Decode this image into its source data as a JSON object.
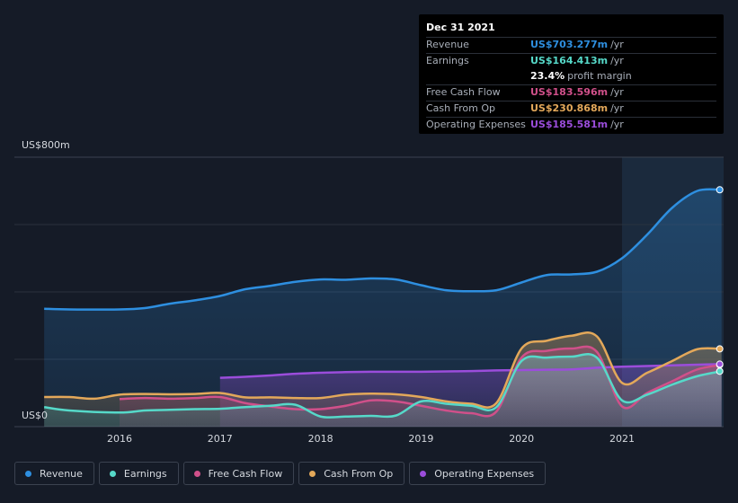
{
  "chart_data": {
    "type": "area",
    "y_axis": {
      "top_label": "US$800m",
      "bottom_label": "US$0",
      "ylim": [
        0,
        800
      ],
      "grid": true
    },
    "x_ticks": [
      "2016",
      "2017",
      "2018",
      "2019",
      "2020",
      "2021"
    ],
    "xlim": [
      2015.25,
      2021.99
    ],
    "highlight_start": 2021.0,
    "series": [
      {
        "name": "Revenue",
        "color": "#2e8fe0",
        "points": [
          [
            2015.25,
            350
          ],
          [
            2015.5,
            348
          ],
          [
            2016.0,
            348
          ],
          [
            2016.25,
            352
          ],
          [
            2016.5,
            365
          ],
          [
            2016.75,
            375
          ],
          [
            2017.0,
            388
          ],
          [
            2017.25,
            408
          ],
          [
            2017.5,
            418
          ],
          [
            2017.75,
            430
          ],
          [
            2018.0,
            437
          ],
          [
            2018.25,
            436
          ],
          [
            2018.5,
            440
          ],
          [
            2018.75,
            437
          ],
          [
            2019.0,
            420
          ],
          [
            2019.25,
            405
          ],
          [
            2019.5,
            402
          ],
          [
            2019.75,
            405
          ],
          [
            2020.0,
            428
          ],
          [
            2020.25,
            450
          ],
          [
            2020.5,
            452
          ],
          [
            2020.75,
            460
          ],
          [
            2021.0,
            500
          ],
          [
            2021.25,
            570
          ],
          [
            2021.5,
            650
          ],
          [
            2021.75,
            700
          ],
          [
            2021.99,
            703.277
          ]
        ]
      },
      {
        "name": "Earnings",
        "color": "#56d9c9",
        "points": [
          [
            2015.25,
            58
          ],
          [
            2015.5,
            48
          ],
          [
            2016.0,
            42
          ],
          [
            2016.25,
            48
          ],
          [
            2016.5,
            50
          ],
          [
            2016.75,
            52
          ],
          [
            2017.0,
            53
          ],
          [
            2017.25,
            58
          ],
          [
            2017.5,
            62
          ],
          [
            2017.75,
            65
          ],
          [
            2018.0,
            30
          ],
          [
            2018.25,
            30
          ],
          [
            2018.5,
            32
          ],
          [
            2018.75,
            33
          ],
          [
            2019.0,
            75
          ],
          [
            2019.25,
            68
          ],
          [
            2019.5,
            62
          ],
          [
            2019.75,
            58
          ],
          [
            2020.0,
            195
          ],
          [
            2020.25,
            205
          ],
          [
            2020.5,
            208
          ],
          [
            2020.75,
            205
          ],
          [
            2021.0,
            78
          ],
          [
            2021.25,
            95
          ],
          [
            2021.5,
            125
          ],
          [
            2021.75,
            150
          ],
          [
            2021.99,
            164.413
          ]
        ]
      },
      {
        "name": "Free Cash Flow",
        "color": "#d0508a",
        "points": [
          [
            2016.0,
            82
          ],
          [
            2016.25,
            85
          ],
          [
            2016.5,
            83
          ],
          [
            2016.75,
            85
          ],
          [
            2017.0,
            88
          ],
          [
            2017.25,
            70
          ],
          [
            2017.5,
            60
          ],
          [
            2017.75,
            52
          ],
          [
            2018.0,
            52
          ],
          [
            2018.25,
            62
          ],
          [
            2018.5,
            78
          ],
          [
            2018.75,
            75
          ],
          [
            2019.0,
            62
          ],
          [
            2019.25,
            48
          ],
          [
            2019.5,
            40
          ],
          [
            2019.75,
            45
          ],
          [
            2020.0,
            205
          ],
          [
            2020.25,
            225
          ],
          [
            2020.5,
            232
          ],
          [
            2020.75,
            222
          ],
          [
            2021.0,
            60
          ],
          [
            2021.25,
            100
          ],
          [
            2021.5,
            135
          ],
          [
            2021.75,
            170
          ],
          [
            2021.99,
            183.596
          ]
        ]
      },
      {
        "name": "Cash From Op",
        "color": "#e3a85a",
        "points": [
          [
            2015.25,
            88
          ],
          [
            2015.5,
            88
          ],
          [
            2015.75,
            83
          ],
          [
            2016.0,
            95
          ],
          [
            2016.25,
            97
          ],
          [
            2016.5,
            96
          ],
          [
            2016.75,
            97
          ],
          [
            2017.0,
            100
          ],
          [
            2017.25,
            87
          ],
          [
            2017.5,
            87
          ],
          [
            2017.75,
            85
          ],
          [
            2018.0,
            85
          ],
          [
            2018.25,
            95
          ],
          [
            2018.5,
            98
          ],
          [
            2018.75,
            96
          ],
          [
            2019.0,
            88
          ],
          [
            2019.25,
            75
          ],
          [
            2019.5,
            68
          ],
          [
            2019.75,
            70
          ],
          [
            2020.0,
            232
          ],
          [
            2020.25,
            255
          ],
          [
            2020.5,
            270
          ],
          [
            2020.75,
            268
          ],
          [
            2021.0,
            130
          ],
          [
            2021.25,
            160
          ],
          [
            2021.5,
            195
          ],
          [
            2021.75,
            230
          ],
          [
            2021.99,
            230.868
          ]
        ]
      },
      {
        "name": "Operating Expenses",
        "color": "#9b4ddb",
        "points": [
          [
            2017.0,
            145
          ],
          [
            2017.25,
            148
          ],
          [
            2017.5,
            152
          ],
          [
            2017.75,
            157
          ],
          [
            2018.0,
            160
          ],
          [
            2018.25,
            162
          ],
          [
            2018.5,
            163
          ],
          [
            2018.75,
            163
          ],
          [
            2019.0,
            163
          ],
          [
            2019.25,
            164
          ],
          [
            2019.5,
            165
          ],
          [
            2019.75,
            167
          ],
          [
            2020.0,
            168
          ],
          [
            2020.25,
            169
          ],
          [
            2020.5,
            170
          ],
          [
            2020.75,
            175
          ],
          [
            2021.0,
            178
          ],
          [
            2021.25,
            180
          ],
          [
            2021.5,
            182
          ],
          [
            2021.75,
            184
          ],
          [
            2021.99,
            185.581
          ]
        ]
      }
    ]
  },
  "tooltip": {
    "date": "Dec 31 2021",
    "rows": [
      {
        "label": "Revenue",
        "value": "US$703.277m",
        "unit": "/yr",
        "color": "#2e8fe0"
      },
      {
        "label": "Earnings",
        "value": "US$164.413m",
        "unit": "/yr",
        "color": "#56d9c9"
      },
      {
        "label": "",
        "value": "23.4%",
        "unit": "profit margin",
        "color": "#ffffff"
      },
      {
        "label": "Free Cash Flow",
        "value": "US$183.596m",
        "unit": "/yr",
        "color": "#d0508a"
      },
      {
        "label": "Cash From Op",
        "value": "US$230.868m",
        "unit": "/yr",
        "color": "#e3a85a"
      },
      {
        "label": "Operating Expenses",
        "value": "US$185.581m",
        "unit": "/yr",
        "color": "#9b4ddb"
      }
    ]
  },
  "legend": [
    {
      "label": "Revenue",
      "color": "#2e8fe0"
    },
    {
      "label": "Earnings",
      "color": "#56d9c9"
    },
    {
      "label": "Free Cash Flow",
      "color": "#d0508a"
    },
    {
      "label": "Cash From Op",
      "color": "#e3a85a"
    },
    {
      "label": "Operating Expenses",
      "color": "#9b4ddb"
    }
  ]
}
